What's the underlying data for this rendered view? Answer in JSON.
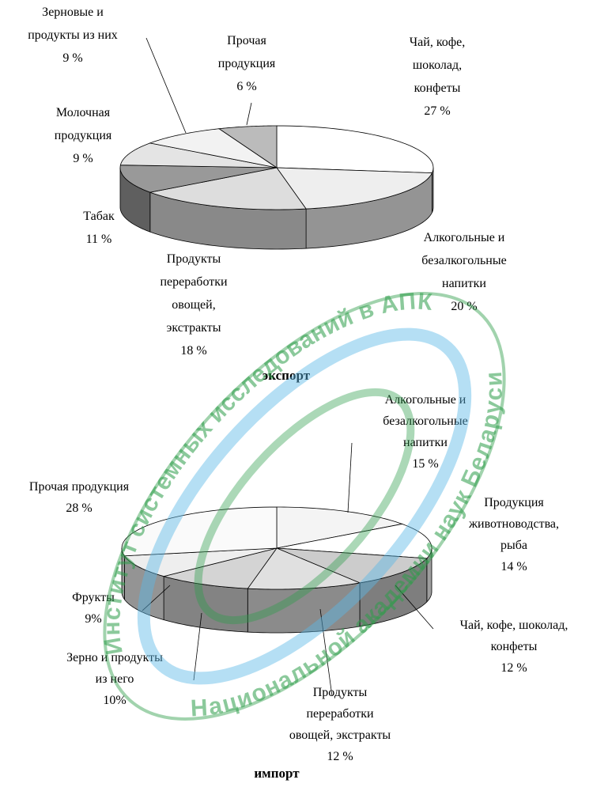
{
  "chart_data": [
    {
      "type": "pie",
      "title": "экспорт",
      "categories": [
        "Чай, кофе,\nшоколад,\nконфеты",
        "Алкогольные и\nбезалкогольные\nнапитки",
        "Продукты\nпереработки\nовощей,\nэкстракты",
        "Табак",
        "Молочная\nпродукция",
        "Зерновые и\nпродукты из них",
        "Прочая\nпродукция"
      ],
      "values": [
        27,
        20,
        18,
        11,
        9,
        9,
        6
      ],
      "value_labels": [
        "27 %",
        "20 %",
        "18 %",
        "11 %",
        "9 %",
        "9 %",
        "6 %"
      ],
      "colors": [
        "#ffffff",
        "#eeeeee",
        "#dddddd",
        "#999999",
        "#e4e4e4",
        "#f2f2f2",
        "#bbbbbb"
      ]
    },
    {
      "type": "pie",
      "title": "импорт",
      "categories": [
        "Алкогольные и\nбезалкогольные\nнапитки",
        "Продукция\nживотноводства,\nрыба",
        "Чай, кофе, шоколад,\nконфеты",
        "Продукты\nпереработки\nовощей, экстракты",
        "Зерно и продукты\nиз него",
        "Фрукты",
        "Прочая продукция"
      ],
      "values": [
        15,
        14,
        12,
        12,
        10,
        9,
        28
      ],
      "value_labels": [
        "15 %",
        "14 %",
        "12 %",
        "12 %",
        "10%",
        "9%",
        "28 %"
      ],
      "colors": [
        "#f4f4f4",
        "#ffffff",
        "#cccccc",
        "#e0e0e0",
        "#d4d4d4",
        "#eeeeee",
        "#fafafa"
      ]
    }
  ],
  "watermark": {
    "top": "Институт системных исследований в АПК",
    "bottom": "Национальной академии наук Беларуси"
  }
}
